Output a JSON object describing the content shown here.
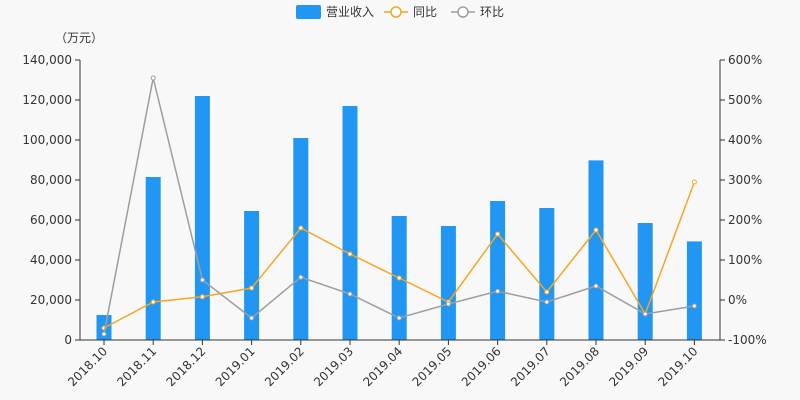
{
  "chart_data": {
    "type": "bar",
    "unit_label": "（万元）",
    "categories": [
      "2018.10",
      "2018.11",
      "2018.12",
      "2019.01",
      "2019.02",
      "2019.03",
      "2019.04",
      "2019.05",
      "2019.06",
      "2019.07",
      "2019.08",
      "2019.09",
      "2019.10"
    ],
    "series": [
      {
        "name": "营业收入",
        "type": "bar",
        "axis": "left",
        "color": "#2196f3",
        "values": [
          12500,
          81500,
          122000,
          64500,
          101000,
          117000,
          62000,
          57000,
          69500,
          66000,
          89800,
          58500,
          49300
        ]
      },
      {
        "name": "同比",
        "type": "line",
        "axis": "right",
        "color": "#f5a623",
        "values": [
          -70,
          -5,
          8,
          30,
          180,
          115,
          55,
          -5,
          165,
          20,
          175,
          -35,
          295
        ]
      },
      {
        "name": "环比",
        "type": "line",
        "axis": "right",
        "color": "#9e9e9e",
        "values": [
          -85,
          555,
          50,
          -45,
          57,
          15,
          -45,
          -10,
          22,
          -5,
          35,
          -35,
          -15
        ]
      }
    ],
    "left_axis": {
      "min": 0,
      "max": 140000,
      "step": 20000,
      "tick_labels": [
        "0",
        "20,000",
        "40,000",
        "60,000",
        "80,000",
        "100,000",
        "120,000",
        "140,000"
      ]
    },
    "right_axis": {
      "min": -100,
      "max": 600,
      "step": 100,
      "tick_labels": [
        "-100%",
        "0%",
        "100%",
        "200%",
        "300%",
        "400%",
        "500%",
        "600%"
      ]
    },
    "grid": false,
    "legend_position": "top-center"
  }
}
